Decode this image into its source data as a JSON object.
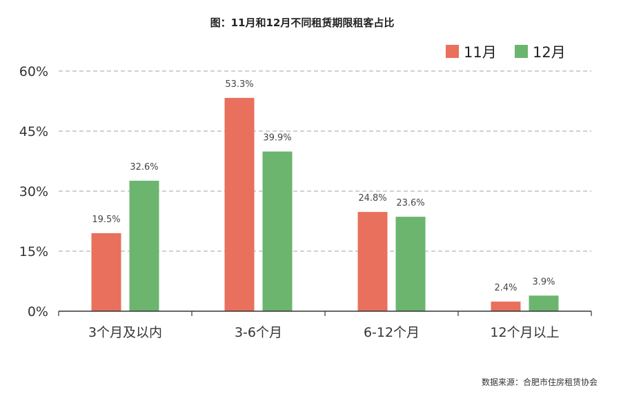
{
  "chart_data": {
    "type": "bar",
    "title": "图：11月和12月不同租赁期限租客占比",
    "categories": [
      "3个月及以内",
      "3-6个月",
      "6-12个月",
      "12个月以上"
    ],
    "series": [
      {
        "name": "11月",
        "color": "#e8705c",
        "values": [
          19.5,
          53.3,
          24.8,
          2.4
        ],
        "labels": [
          "19.5%",
          "53.3%",
          "24.8%",
          "2.4%"
        ]
      },
      {
        "name": "12月",
        "color": "#6cb56f",
        "values": [
          32.6,
          39.9,
          23.6,
          3.9
        ],
        "labels": [
          "32.6%",
          "39.9%",
          "23.6%",
          "3.9%"
        ]
      }
    ],
    "ylim": [
      0,
      60
    ],
    "yticks": [
      0,
      15,
      30,
      45,
      60
    ],
    "ytick_labels": [
      "0%",
      "15%",
      "30%",
      "45%",
      "60%"
    ],
    "grid": true,
    "legend": "top-right",
    "source": "数据来源：合肥市住房租赁协会"
  }
}
